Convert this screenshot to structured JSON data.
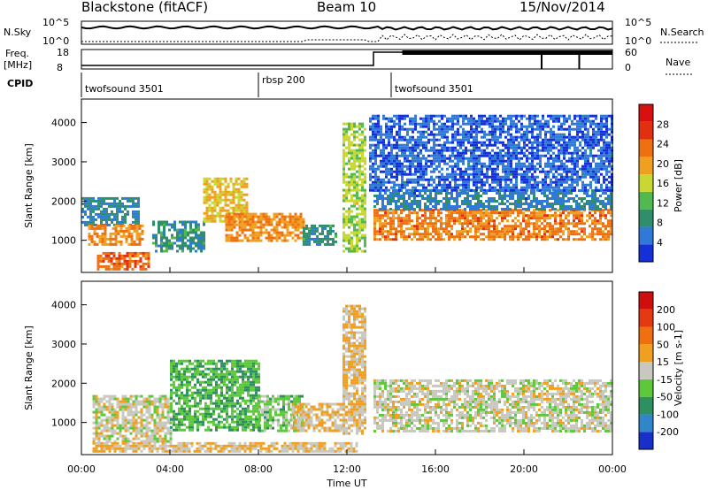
{
  "header": {
    "station": "Blackstone (fitACF)",
    "beam": "Beam 10",
    "date": "15/Nov/2014"
  },
  "top_panels": {
    "nsky_label": "N.Sky",
    "nsky_ticks": [
      "10^5",
      "10^0"
    ],
    "nsearch_label": "N.Search",
    "nsearch_ticks": [
      "10^5",
      "10^0"
    ],
    "freq_label": "Freq.",
    "freq_unit": "[MHz]",
    "freq_ticks": [
      "18",
      "8"
    ],
    "nave_label": "Nave",
    "nave_ticks": [
      "60",
      "0"
    ],
    "cpid_label": "CPID",
    "cpid_segments": [
      {
        "name": "twofsound 3501",
        "start": 0.0,
        "end": 8.0
      },
      {
        "name": "rbsp 200",
        "start": 8.0,
        "end": 14.0
      },
      {
        "name": "twofsound 3501",
        "start": 14.0,
        "end": 24.0
      }
    ]
  },
  "axes": {
    "xlabel": "Time UT",
    "xticks": [
      "00:00",
      "04:00",
      "08:00",
      "12:00",
      "16:00",
      "20:00",
      "00:00"
    ],
    "ylabel": "Slant Range [km]",
    "yticks": [
      "1000",
      "2000",
      "3000",
      "4000"
    ]
  },
  "colorbars": {
    "power": {
      "label": "Power [dB]",
      "ticks": [
        "4",
        "8",
        "12",
        "16",
        "20",
        "24",
        "28"
      ],
      "colors": [
        "#1530d8",
        "#2f7ad6",
        "#2f8f6a",
        "#52b850",
        "#c8d830",
        "#f0a020",
        "#ee7010",
        "#e03010",
        "#d81010"
      ]
    },
    "velocity": {
      "label": "Velocity [m s-1]",
      "ticks": [
        "200",
        "100",
        "50",
        "15",
        "-15",
        "-50",
        "-100",
        "-200"
      ],
      "colors": [
        "#1830c8",
        "#2f86c8",
        "#2e9060",
        "#5cc83a",
        "#c8c8c0",
        "#f0a020",
        "#ee7010",
        "#e43a12",
        "#d00e0e"
      ]
    }
  },
  "chart_data": [
    {
      "type": "heatmap",
      "quantity": "power",
      "xlabel": "Time UT",
      "ylabel": "Slant Range [km]",
      "xlim": [
        0,
        24
      ],
      "ylim": [
        180,
        4600
      ],
      "colorbar_range": [
        0,
        30
      ],
      "blobs": [
        {
          "t0": 0.0,
          "t1": 2.6,
          "r0": 1400,
          "r1": 2100,
          "value": 7
        },
        {
          "t0": 0.3,
          "t1": 2.8,
          "r0": 900,
          "r1": 1400,
          "value": 20
        },
        {
          "t0": 0.7,
          "t1": 3.0,
          "r0": 250,
          "r1": 700,
          "value": 22
        },
        {
          "t0": 3.2,
          "t1": 5.5,
          "r0": 700,
          "r1": 1500,
          "value": 8
        },
        {
          "t0": 5.5,
          "t1": 7.5,
          "r0": 1500,
          "r1": 2600,
          "value": 17
        },
        {
          "t0": 6.5,
          "t1": 10.0,
          "r0": 1000,
          "r1": 1700,
          "value": 20
        },
        {
          "t0": 10.0,
          "t1": 11.5,
          "r0": 900,
          "r1": 1400,
          "value": 8
        },
        {
          "t0": 11.8,
          "t1": 12.8,
          "r0": 700,
          "r1": 4000,
          "value": 14
        },
        {
          "t0": 13.2,
          "t1": 24.0,
          "r0": 1000,
          "r1": 1800,
          "value": 21
        },
        {
          "t0": 13.2,
          "t1": 24.0,
          "r0": 1800,
          "r1": 2300,
          "value": 6
        },
        {
          "t0": 13.0,
          "t1": 24.0,
          "r0": 2300,
          "r1": 4200,
          "value": 4
        }
      ]
    },
    {
      "type": "heatmap",
      "quantity": "velocity",
      "xlabel": "Time UT",
      "ylabel": "Slant Range [km]",
      "xlim": [
        0,
        24
      ],
      "ylim": [
        180,
        4600
      ],
      "colorbar_range": [
        -200,
        200
      ],
      "blobs": [
        {
          "t0": 0.5,
          "t1": 4.0,
          "r0": 500,
          "r1": 1700,
          "value": 0
        },
        {
          "t0": 4.0,
          "t1": 8.0,
          "r0": 800,
          "r1": 2600,
          "value": -60
        },
        {
          "t0": 8.0,
          "t1": 10.0,
          "r0": 800,
          "r1": 1700,
          "value": -40
        },
        {
          "t0": 9.5,
          "t1": 12.0,
          "r0": 800,
          "r1": 1500,
          "value": 20
        },
        {
          "t0": 0.5,
          "t1": 12.5,
          "r0": 250,
          "r1": 500,
          "value": 20
        },
        {
          "t0": 11.8,
          "t1": 12.8,
          "r0": 700,
          "r1": 4000,
          "value": 25
        },
        {
          "t0": 13.2,
          "t1": 24.0,
          "r0": 800,
          "r1": 2100,
          "value": 0
        }
      ]
    }
  ]
}
